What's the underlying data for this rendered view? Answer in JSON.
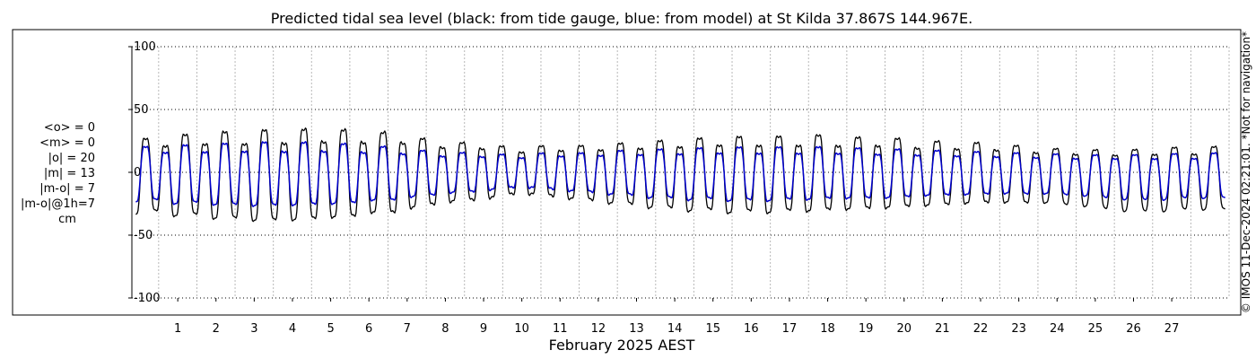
{
  "chart_data": {
    "type": "line",
    "title": "Predicted tidal sea level (black: from tide gauge, blue: from model) at St Kilda 37.867S 144.967E.",
    "xlabel": "February 2025 AEST",
    "ylabel": "",
    "units": "cm",
    "x_domain_days": [
      -0.7,
      28
    ],
    "ylim": [
      -100,
      100
    ],
    "yticks": [
      -100,
      -50,
      0,
      50,
      100
    ],
    "ytick_labels": [
      "-100",
      "-50",
      "0",
      "50",
      "100"
    ],
    "xticks": [
      1,
      2,
      3,
      4,
      5,
      6,
      7,
      8,
      9,
      10,
      11,
      12,
      13,
      14,
      15,
      16,
      17,
      18,
      19,
      20,
      21,
      22,
      23,
      24,
      25,
      26,
      27
    ],
    "xtick_labels": [
      "1",
      "2",
      "3",
      "4",
      "5",
      "6",
      "7",
      "8",
      "9",
      "10",
      "11",
      "12",
      "13",
      "14",
      "15",
      "16",
      "17",
      "18",
      "19",
      "20",
      "21",
      "22",
      "23",
      "24",
      "25",
      "26",
      "27"
    ],
    "grid": true,
    "series": [
      {
        "color": "#000000",
        "x": [
          -0.6,
          27.9
        ],
        "high_tide_peaks": [
          29,
          26,
          32,
          29,
          34,
          30,
          35,
          31,
          36,
          32,
          36,
          30,
          35,
          28,
          28,
          24,
          26,
          22,
          21,
          22,
          23,
          22,
          24,
          24,
          26,
          26,
          28,
          28,
          30,
          28,
          30,
          28,
          31,
          28,
          29,
          28,
          28,
          25,
          26,
          24,
          25,
          22,
          22,
          19,
          20,
          18,
          19,
          18,
          20,
          20,
          20,
          21
        ],
        "low_tide_troughs": [
          -38,
          -35,
          -40,
          -38,
          -43,
          -41,
          -45,
          -42,
          -44,
          -40,
          -42,
          -36,
          -38,
          -32,
          -30,
          -26,
          -26,
          -22,
          -20,
          -20,
          -24,
          -24,
          -28,
          -28,
          -32,
          -32,
          -35,
          -34,
          -37,
          -35,
          -37,
          -34,
          -36,
          -33,
          -34,
          -32,
          -32,
          -30,
          -30,
          -28,
          -28,
          -27,
          -28,
          -27,
          -30,
          -30,
          -34,
          -34,
          -35,
          -33
        ]
      },
      {
        "color": "#0000cc",
        "x": [
          -0.6,
          27.9
        ],
        "high_tide_peaks": [
          22,
          20,
          23,
          21,
          24,
          22,
          25,
          22,
          25,
          22,
          24,
          20,
          22,
          18,
          18,
          16,
          17,
          15,
          15,
          16,
          17,
          16,
          18,
          18,
          19,
          19,
          20,
          20,
          21,
          20,
          21,
          20,
          21,
          20,
          20,
          19,
          19,
          18,
          18,
          17,
          17,
          16,
          16,
          15,
          15,
          14,
          15,
          14,
          15,
          15,
          15,
          16
        ],
        "low_tide_troughs": [
          -27,
          -25,
          -29,
          -27,
          -30,
          -29,
          -31,
          -29,
          -30,
          -28,
          -29,
          -25,
          -26,
          -22,
          -21,
          -18,
          -18,
          -15,
          -14,
          -14,
          -17,
          -17,
          -20,
          -20,
          -23,
          -23,
          -25,
          -24,
          -26,
          -25,
          -26,
          -24,
          -25,
          -23,
          -24,
          -23,
          -23,
          -21,
          -21,
          -20,
          -20,
          -19,
          -20,
          -19,
          -21,
          -21,
          -24,
          -24,
          -25,
          -23
        ]
      }
    ],
    "stats_lines": [
      "<o> = 0",
      "<m> = 0",
      "|o| = 20",
      "|m| = 13",
      "|m-o| = 7",
      "|m-o|@1h=7",
      "cm"
    ],
    "copyright": "© IMOS 11-Dec-2024 02:21:01. *Not for navigation*"
  }
}
